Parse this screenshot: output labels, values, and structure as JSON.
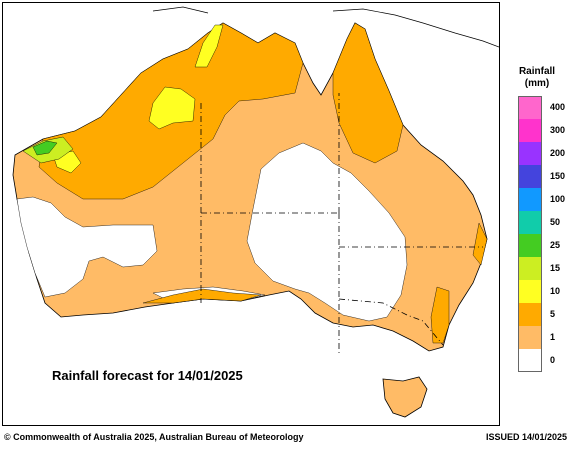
{
  "map": {
    "title": "Rainfall forecast for 14/01/2025"
  },
  "legend": {
    "title_line1": "Rainfall",
    "title_line2": "(mm)",
    "bins": [
      {
        "label": "400",
        "color": "#ff66cc"
      },
      {
        "label": "300",
        "color": "#ff33cc"
      },
      {
        "label": "200",
        "color": "#9933ff"
      },
      {
        "label": "150",
        "color": "#4444dd"
      },
      {
        "label": "100",
        "color": "#1199ff"
      },
      {
        "label": "50",
        "color": "#11ccaa"
      },
      {
        "label": "25",
        "color": "#44cc22"
      },
      {
        "label": "15",
        "color": "#ccee22"
      },
      {
        "label": "10",
        "color": "#ffff22"
      },
      {
        "label": "5",
        "color": "#ffaa00"
      },
      {
        "label": "1",
        "color": "#ffbb66"
      },
      {
        "label": "0",
        "color": "#ffffff"
      }
    ]
  },
  "footer": {
    "copyright": "© Commonwealth of Australia 2025, Australian Bureau of Meteorology",
    "issued": "ISSUED 14/01/2025"
  },
  "colors": {
    "rain_1": "#ffbb66",
    "rain_5": "#ffaa00",
    "rain_10": "#ffff22",
    "rain_15": "#ccee22",
    "rain_25": "#44cc22"
  }
}
